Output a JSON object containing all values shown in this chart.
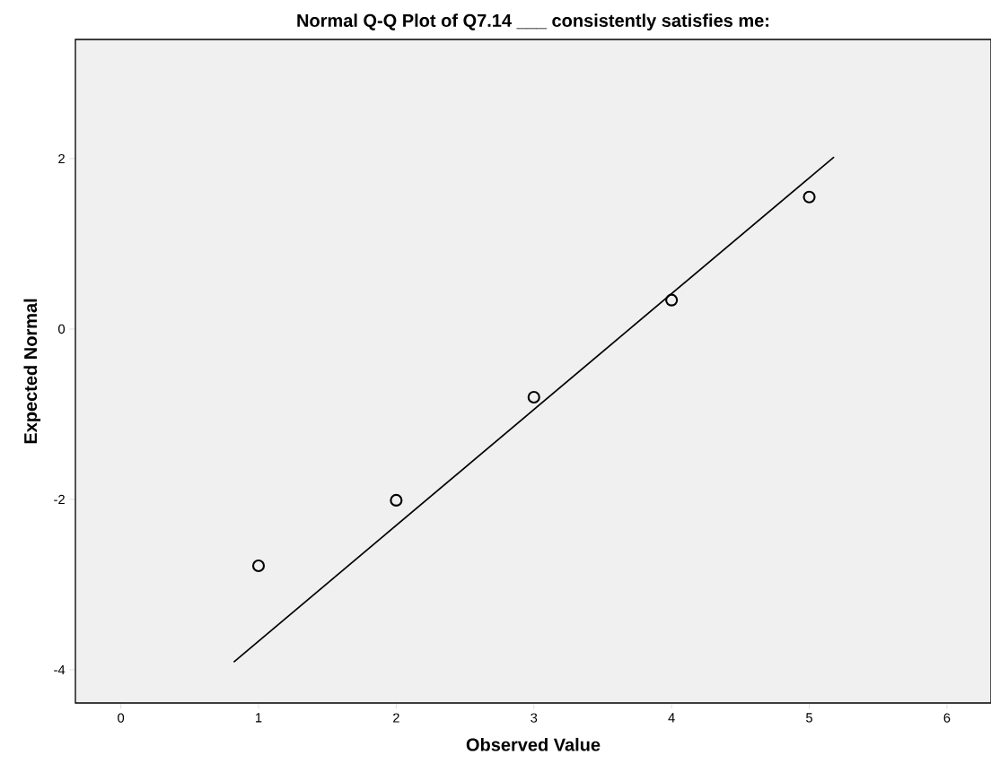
{
  "chart_data": {
    "type": "scatter",
    "title": "Normal Q-Q Plot of Q7.14 ___ consistently satisfies me:",
    "xlabel": "Observed Value",
    "ylabel": "Expected Normal",
    "xlim": [
      -0.33,
      6.32
    ],
    "ylim": [
      -4.39,
      3.4
    ],
    "xticks": [
      0,
      1,
      2,
      3,
      4,
      5,
      6
    ],
    "yticks": [
      -4,
      -2,
      0,
      2
    ],
    "series": [
      {
        "color": "#000000",
        "marker": "circle",
        "x": [
          1,
          2,
          3,
          4,
          5
        ],
        "values": [
          -2.78,
          -2.01,
          -0.8,
          0.34,
          1.55
        ]
      },
      {
        "type": "line",
        "color": "#000000",
        "marker": "none",
        "x": [
          0.82,
          5.18
        ],
        "values": [
          -3.91,
          2.02
        ]
      }
    ]
  }
}
